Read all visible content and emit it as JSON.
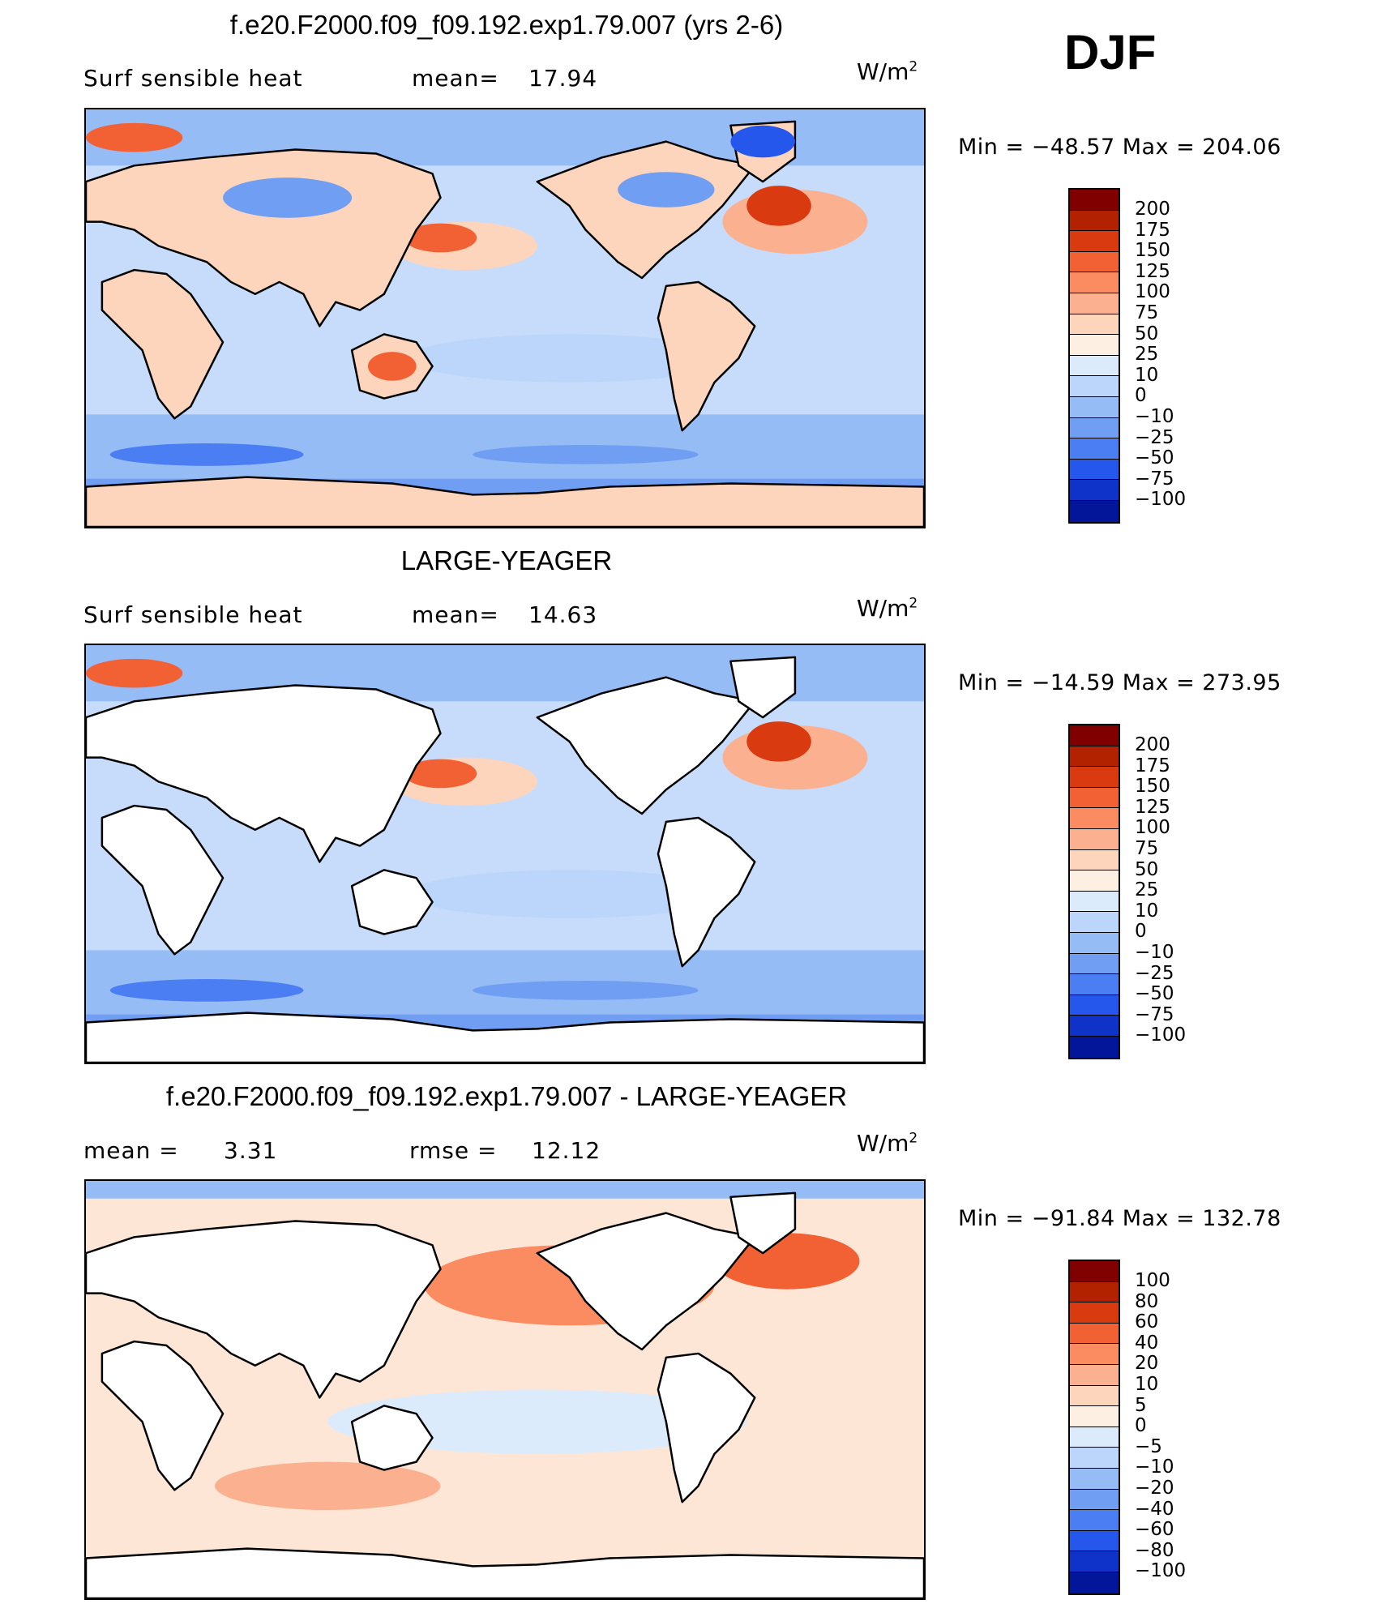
{
  "season": "DJF",
  "units": "W/m",
  "units_exp": "2",
  "land_color": "#ffffff",
  "panels": [
    {
      "title": "f.e20.F2000.f09_f09.192.exp1.79.007 (yrs 2-6)",
      "left_label": "Surf  sensible  heat",
      "stat1_label": "mean=",
      "stat1_value": "17.94",
      "min_max": "Min  =  −48.57  Max  =  204.06",
      "fill_land": true,
      "colorbar_labels": [
        "200",
        "175",
        "150",
        "125",
        "100",
        "75",
        "50",
        "25",
        "10",
        "0",
        "−10",
        "−25",
        "−50",
        "−75",
        "−100"
      ],
      "colorbar_colors": [
        "#800000",
        "#b22200",
        "#d93a10",
        "#f26134",
        "#fb8b60",
        "#fbb08f",
        "#fdd5bc",
        "#fdf0e3",
        "#dcebfb",
        "#bcd5fa",
        "#96bcf6",
        "#6f9ef2",
        "#4a7ef2",
        "#2557ec",
        "#0f33c9",
        "#03169a"
      ],
      "ocean_base": "#c7dcfa",
      "features": [
        {
          "name": "gulf-stream",
          "color": "#e8562a"
        },
        {
          "name": "kuroshio",
          "color": "#f2885e"
        },
        {
          "name": "southern-ocean-band",
          "color": "#6f9ef2"
        },
        {
          "name": "arctic-cold",
          "color": "#4a7ef2"
        }
      ]
    },
    {
      "title": "LARGE-YEAGER",
      "left_label": "Surf  sensible  heat",
      "stat1_label": "mean=",
      "stat1_value": "14.63",
      "min_max": "Min  =  −14.59  Max  =  273.95",
      "fill_land": false,
      "colorbar_labels": [
        "200",
        "175",
        "150",
        "125",
        "100",
        "75",
        "50",
        "25",
        "10",
        "0",
        "−10",
        "−25",
        "−50",
        "−75",
        "−100"
      ],
      "colorbar_colors": [
        "#800000",
        "#b22200",
        "#d93a10",
        "#f26134",
        "#fb8b60",
        "#fbb08f",
        "#fdd5bc",
        "#fdf0e3",
        "#dcebfb",
        "#bcd5fa",
        "#96bcf6",
        "#6f9ef2",
        "#4a7ef2",
        "#2557ec",
        "#0f33c9",
        "#03169a"
      ],
      "ocean_base": "#c7dcfa"
    },
    {
      "title": "f.e20.F2000.f09_f09.192.exp1.79.007 - LARGE-YEAGER",
      "left_label": "mean  =",
      "left_value": "3.31",
      "stat1_label": "rmse  =",
      "stat1_value": "12.12",
      "min_max": "Min  =  −91.84  Max  =  132.78",
      "fill_land": false,
      "colorbar_labels": [
        "100",
        "80",
        "60",
        "40",
        "20",
        "10",
        "5",
        "0",
        "−5",
        "−10",
        "−20",
        "−40",
        "−60",
        "−80",
        "−100"
      ],
      "colorbar_colors": [
        "#800000",
        "#b22200",
        "#d93a10",
        "#f26134",
        "#fb8b60",
        "#fbb08f",
        "#fdd5bc",
        "#fdf0e3",
        "#dcebfb",
        "#bcd5fa",
        "#96bcf6",
        "#6f9ef2",
        "#4a7ef2",
        "#2557ec",
        "#0f33c9",
        "#03169a"
      ],
      "ocean_base": "#fde6d6"
    }
  ],
  "chart_data": [
    {
      "type": "heatmap",
      "title": "f.e20.F2000.f09_f09.192.exp1.79.007 (yrs 2-6)",
      "variable": "Surf sensible heat",
      "units": "W/m2",
      "season": "DJF",
      "mean": 17.94,
      "min": -48.57,
      "max": 204.06,
      "contour_levels": [
        -100,
        -75,
        -50,
        -25,
        -10,
        0,
        10,
        25,
        50,
        75,
        100,
        125,
        150,
        175,
        200
      ]
    },
    {
      "type": "heatmap",
      "title": "LARGE-YEAGER",
      "variable": "Surf sensible heat",
      "units": "W/m2",
      "mean": 14.63,
      "min": -14.59,
      "max": 273.95,
      "contour_levels": [
        -100,
        -75,
        -50,
        -25,
        -10,
        0,
        10,
        25,
        50,
        75,
        100,
        125,
        150,
        175,
        200
      ]
    },
    {
      "type": "heatmap",
      "title": "f.e20.F2000.f09_f09.192.exp1.79.007 - LARGE-YEAGER",
      "units": "W/m2",
      "mean": 3.31,
      "rmse": 12.12,
      "min": -91.84,
      "max": 132.78,
      "contour_levels": [
        -100,
        -80,
        -60,
        -40,
        -20,
        -10,
        -5,
        0,
        5,
        10,
        20,
        40,
        60,
        80,
        100
      ]
    }
  ]
}
